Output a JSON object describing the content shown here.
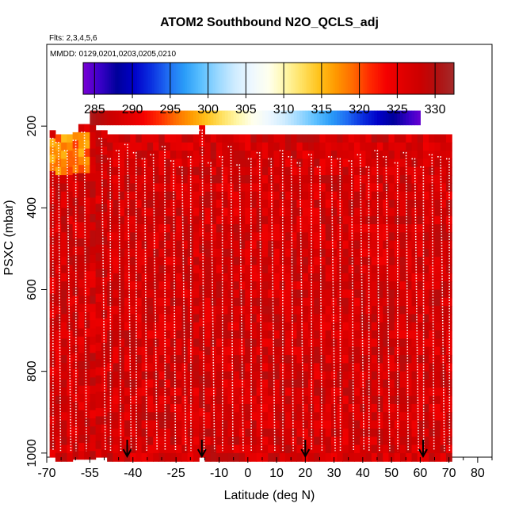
{
  "chart_data": {
    "type": "heatmap",
    "title": "ATOM2 Southbound N2O_QCLS_adj",
    "flights_note": "Flts: 2,3,4,5,6",
    "dates_note": "MMDD: 0129,0201,0203,0205,0210",
    "xlabel": "Latitude (deg N)",
    "ylabel": "PSXC (mbar)",
    "xlim": [
      -70,
      85
    ],
    "ylim": [
      1010,
      0
    ],
    "x_ticks": [
      -70,
      -55,
      -40,
      -25,
      -10,
      0,
      10,
      20,
      30,
      40,
      50,
      60,
      70,
      80
    ],
    "x_minor_ticks": [
      -65,
      -60,
      -50,
      -45,
      -35,
      -30,
      -20,
      -15,
      -5,
      5,
      15,
      25,
      35,
      45,
      55,
      65,
      75,
      85
    ],
    "y_ticks": [
      200,
      400,
      600,
      800,
      1000
    ],
    "colorbar": {
      "min": 283.5,
      "max": 332.5,
      "ticks": [
        285,
        290,
        295,
        300,
        305,
        310,
        315,
        320,
        325,
        330
      ],
      "colors": [
        "#7a00d4",
        "#3a00c8",
        "#00009a",
        "#0000c8",
        "#0a2ee0",
        "#1f6bf2",
        "#2a9cf8",
        "#5cc0ff",
        "#9ad8ff",
        "#cfecff",
        "#eef8ff",
        "#ffffee",
        "#fff7a8",
        "#ffe060",
        "#ffc21a",
        "#ff9800",
        "#ff6a00",
        "#ff2a00",
        "#f50000",
        "#e00000",
        "#cc0000",
        "#b01010",
        "#a52a2a"
      ]
    },
    "field": {
      "x_start": -69,
      "x_end": 71,
      "p_bottom": 1010,
      "top_band": {
        "p_top": 162,
        "p_bottom": 198,
        "x_start": -55,
        "x_end": 60,
        "value_at_x_start": 331,
        "value_at_x_end": 284
      },
      "high_lat_yellow_region": {
        "x_start": -69,
        "x_end": -55,
        "p_top": 215,
        "p_bottom": 310,
        "value": 318
      },
      "background_value": 330
    },
    "profiles_lat": [
      -69,
      -67,
      -64,
      -61,
      -58,
      -52,
      -49,
      -46,
      -43,
      -40,
      -37,
      -34,
      -30,
      -27,
      -24,
      -21,
      -17,
      -14,
      -10,
      -7,
      -4,
      0,
      3,
      7,
      11,
      14,
      17,
      21,
      24,
      28,
      31,
      35,
      38,
      41,
      44,
      47,
      51,
      54,
      57,
      60,
      63,
      66,
      69
    ],
    "profile_top_pressure": [
      230,
      240,
      260,
      235,
      215,
      230,
      280,
      260,
      245,
      265,
      280,
      270,
      250,
      285,
      300,
      275,
      210,
      290,
      275,
      250,
      295,
      280,
      265,
      280,
      260,
      275,
      290,
      270,
      300,
      275,
      280,
      285,
      270,
      300,
      260,
      275,
      290,
      265,
      280,
      300,
      270,
      275,
      280
    ],
    "arrows_lat": [
      -42,
      -16,
      20,
      61
    ]
  }
}
